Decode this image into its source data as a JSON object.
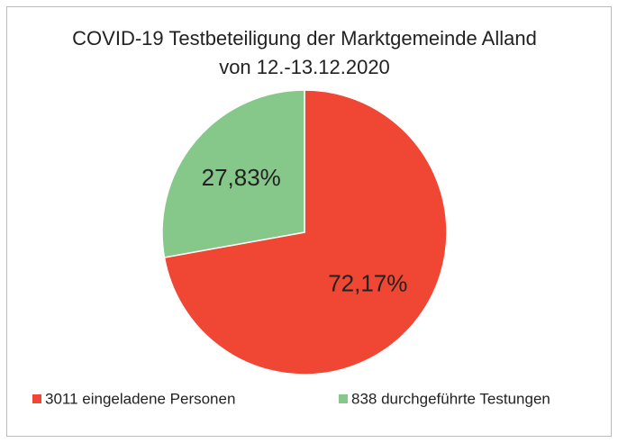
{
  "chart_data": {
    "type": "pie",
    "title": [
      "COVID-19 Testbeteiligung der Marktgemeinde Alland",
      "von 12.-13.12.2020"
    ],
    "categories": [
      "3011 eingeladene Personen",
      "838 durchgeführte Testungen"
    ],
    "values": [
      72.17,
      27.83
    ],
    "value_labels": [
      "72,17%",
      "27,83%"
    ],
    "colors": [
      "#ef4733",
      "#86c88a"
    ],
    "legend": "bottom"
  }
}
